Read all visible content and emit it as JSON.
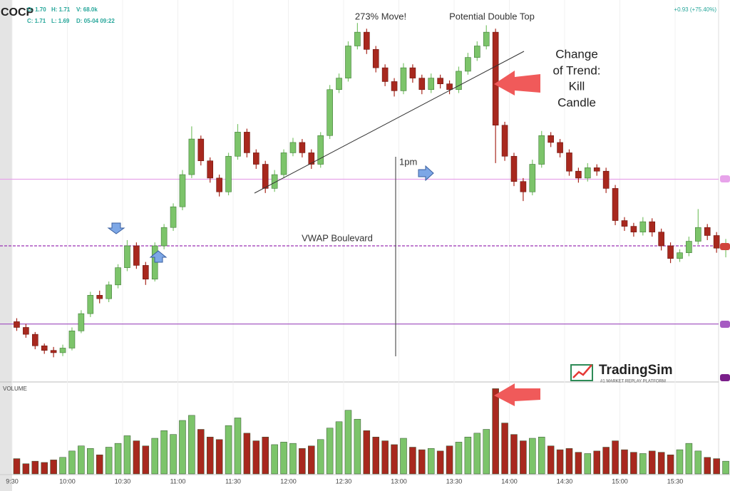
{
  "header": {
    "symbol": "COCP",
    "stats": [
      "O: 1.70",
      "H: 1.71",
      "V: 68.0k",
      "C: 1.71",
      "L: 1.69",
      "D: 05-04 09:22"
    ],
    "change": "+0.93 (+75.40%)"
  },
  "chart_data": {
    "type": "candlestick",
    "categories": [
      "9:30",
      null,
      null,
      null,
      null,
      null,
      "10:00",
      null,
      null,
      null,
      null,
      null,
      "10:30",
      null,
      null,
      null,
      null,
      null,
      "11:00",
      null,
      null,
      null,
      null,
      null,
      "11:30",
      null,
      null,
      null,
      null,
      null,
      "12:00",
      null,
      null,
      null,
      null,
      null,
      "12:30",
      null,
      null,
      null,
      null,
      null,
      "13:00",
      null,
      null,
      null,
      null,
      null,
      "13:30",
      null,
      null,
      null,
      null,
      null,
      "14:00",
      null,
      null,
      null,
      null,
      null,
      "14:30",
      null,
      null,
      null,
      null,
      null,
      "15:00",
      null,
      null,
      null,
      null,
      null,
      "15:30",
      null,
      null,
      null,
      null,
      null
    ],
    "candles": [
      [
        1.5,
        1.53,
        1.42,
        1.45
      ],
      [
        1.45,
        1.48,
        1.36,
        1.39
      ],
      [
        1.39,
        1.41,
        1.26,
        1.29
      ],
      [
        1.29,
        1.31,
        1.22,
        1.25
      ],
      [
        1.25,
        1.28,
        1.19,
        1.23
      ],
      [
        1.23,
        1.3,
        1.2,
        1.27
      ],
      [
        1.27,
        1.45,
        1.25,
        1.42
      ],
      [
        1.42,
        1.6,
        1.4,
        1.57
      ],
      [
        1.57,
        1.76,
        1.54,
        1.73
      ],
      [
        1.73,
        1.77,
        1.66,
        1.7
      ],
      [
        1.7,
        1.85,
        1.67,
        1.82
      ],
      [
        1.82,
        2.0,
        1.79,
        1.97
      ],
      [
        1.97,
        2.21,
        1.94,
        2.16
      ],
      [
        2.16,
        2.19,
        1.96,
        1.99
      ],
      [
        1.99,
        2.02,
        1.82,
        1.87
      ],
      [
        1.87,
        2.19,
        1.85,
        2.16
      ],
      [
        2.16,
        2.35,
        2.13,
        2.32
      ],
      [
        2.32,
        2.53,
        2.29,
        2.5
      ],
      [
        2.5,
        2.82,
        2.47,
        2.78
      ],
      [
        2.78,
        3.2,
        2.75,
        3.09
      ],
      [
        3.09,
        3.12,
        2.86,
        2.9
      ],
      [
        2.9,
        2.93,
        2.71,
        2.75
      ],
      [
        2.75,
        2.78,
        2.59,
        2.63
      ],
      [
        2.63,
        2.97,
        2.6,
        2.94
      ],
      [
        2.94,
        3.22,
        2.91,
        3.15
      ],
      [
        3.15,
        3.18,
        2.93,
        2.97
      ],
      [
        2.97,
        3.0,
        2.83,
        2.87
      ],
      [
        2.87,
        2.9,
        2.62,
        2.66
      ],
      [
        2.66,
        2.82,
        2.63,
        2.78
      ],
      [
        2.78,
        3.0,
        2.75,
        2.97
      ],
      [
        2.97,
        3.1,
        2.94,
        3.06
      ],
      [
        3.06,
        3.09,
        2.93,
        2.97
      ],
      [
        2.97,
        3.0,
        2.83,
        2.87
      ],
      [
        2.87,
        3.15,
        2.84,
        3.12
      ],
      [
        3.12,
        3.56,
        3.09,
        3.52
      ],
      [
        3.52,
        3.66,
        3.49,
        3.62
      ],
      [
        3.62,
        3.94,
        3.59,
        3.9
      ],
      [
        3.9,
        4.1,
        3.87,
        4.02
      ],
      [
        4.02,
        4.05,
        3.83,
        3.87
      ],
      [
        3.87,
        3.9,
        3.67,
        3.71
      ],
      [
        3.71,
        3.74,
        3.55,
        3.59
      ],
      [
        3.59,
        3.62,
        3.46,
        3.51
      ],
      [
        3.51,
        3.75,
        3.48,
        3.71
      ],
      [
        3.71,
        3.74,
        3.58,
        3.62
      ],
      [
        3.62,
        3.65,
        3.48,
        3.52
      ],
      [
        3.52,
        3.66,
        3.49,
        3.62
      ],
      [
        3.62,
        3.65,
        3.53,
        3.57
      ],
      [
        3.57,
        3.6,
        3.48,
        3.52
      ],
      [
        3.52,
        3.72,
        3.49,
        3.68
      ],
      [
        3.68,
        3.84,
        3.65,
        3.8
      ],
      [
        3.8,
        3.94,
        3.77,
        3.9
      ],
      [
        3.9,
        4.08,
        3.87,
        4.02
      ],
      [
        4.02,
        4.05,
        2.88,
        3.21
      ],
      [
        3.21,
        3.24,
        2.9,
        2.94
      ],
      [
        2.94,
        2.97,
        2.68,
        2.72
      ],
      [
        2.72,
        2.75,
        2.55,
        2.63
      ],
      [
        2.63,
        2.91,
        2.6,
        2.87
      ],
      [
        2.87,
        3.16,
        2.84,
        3.12
      ],
      [
        3.12,
        3.15,
        3.02,
        3.06
      ],
      [
        3.06,
        3.09,
        2.93,
        2.97
      ],
      [
        2.97,
        3.0,
        2.77,
        2.81
      ],
      [
        2.81,
        2.84,
        2.71,
        2.75
      ],
      [
        2.75,
        2.88,
        2.72,
        2.84
      ],
      [
        2.84,
        2.87,
        2.77,
        2.81
      ],
      [
        2.81,
        2.84,
        2.62,
        2.66
      ],
      [
        2.66,
        2.69,
        2.34,
        2.38
      ],
      [
        2.38,
        2.41,
        2.29,
        2.33
      ],
      [
        2.33,
        2.36,
        2.24,
        2.28
      ],
      [
        2.28,
        2.41,
        2.25,
        2.37
      ],
      [
        2.37,
        2.4,
        2.24,
        2.28
      ],
      [
        2.28,
        2.31,
        2.12,
        2.16
      ],
      [
        2.16,
        2.19,
        2.01,
        2.05
      ],
      [
        2.05,
        2.13,
        2.02,
        2.1
      ],
      [
        2.1,
        2.24,
        2.07,
        2.2
      ],
      [
        2.2,
        2.48,
        2.17,
        2.32
      ],
      [
        2.32,
        2.35,
        2.21,
        2.25
      ],
      [
        2.25,
        2.28,
        2.1,
        2.14
      ],
      [
        2.14,
        2.22,
        2.06,
        2.18
      ]
    ],
    "volume": [
      1.2,
      0.8,
      1.0,
      0.9,
      1.1,
      1.3,
      1.8,
      2.2,
      2.0,
      1.5,
      2.1,
      2.4,
      3.0,
      2.6,
      2.2,
      2.8,
      3.4,
      3.1,
      4.2,
      4.6,
      3.5,
      2.9,
      2.7,
      3.8,
      4.4,
      3.2,
      2.6,
      2.9,
      2.3,
      2.5,
      2.4,
      2.0,
      2.2,
      2.7,
      3.6,
      4.1,
      5.0,
      4.3,
      3.4,
      2.9,
      2.6,
      2.3,
      2.8,
      2.1,
      1.9,
      2.0,
      1.8,
      2.2,
      2.5,
      2.9,
      3.2,
      3.5,
      6.7,
      4.0,
      3.1,
      2.6,
      2.8,
      2.9,
      2.2,
      1.9,
      2.0,
      1.7,
      1.6,
      1.8,
      2.1,
      2.6,
      1.9,
      1.7,
      1.6,
      1.8,
      1.7,
      1.5,
      1.9,
      2.4,
      1.8,
      1.3,
      1.2,
      1.0
    ],
    "up_color": "#7cc46a",
    "down_color": "#a8281e",
    "ylim": [
      1.0,
      4.3
    ],
    "volume_ylim": [
      0,
      7
    ],
    "volume_label": "VOLUME",
    "levels": [
      {
        "value": 2.74,
        "color": "#e7a3ea"
      },
      {
        "value": 2.16,
        "color": "#9b30b5",
        "dashed": true
      },
      {
        "value": 1.48,
        "color": "#a65bc2"
      }
    ],
    "annotations": [
      "273% Move!",
      "Potential Double Top",
      "1pm",
      "VWAP Boulevard"
    ],
    "kill_note": [
      "Change",
      "of Trend:",
      "Kill",
      "Candle"
    ]
  },
  "logo": {
    "name": "TradingSim",
    "tagline": "#1 MARKET REPLAY PLATFORM"
  }
}
